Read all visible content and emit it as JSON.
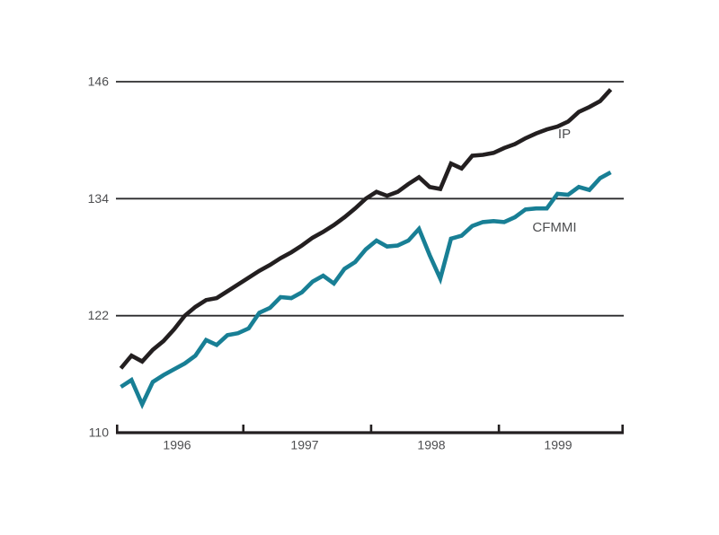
{
  "chart": {
    "style": {
      "background": "#ffffff",
      "axis_color": "#231f20",
      "grid_color": "#2b2b2d",
      "text_color": "#4d4e50",
      "ip_line_color": "#231f20",
      "cfmmi_line_color": "#187f95"
    }
  },
  "chart_data": {
    "type": "line",
    "title": "",
    "xlabel": "",
    "ylabel": "",
    "x_axis": {
      "unit": "month",
      "start": "1996-01",
      "end": "1999-11",
      "tick_labels": [
        "1996",
        "1997",
        "1998",
        "1999"
      ],
      "year_dividers": true
    },
    "y_axis": {
      "range": [
        110,
        146
      ],
      "tick_values": [
        146,
        134,
        122,
        110
      ],
      "tick_labels_top_to_bottom": [
        "146",
        "134",
        "122",
        "110"
      ],
      "gridline_values": [
        146,
        134,
        122
      ]
    },
    "legend": "inline-labels",
    "series": [
      {
        "name": "IP",
        "color": "#231f20",
        "label_position": "below-right-of-line",
        "values": [
          116.6,
          117.9,
          117.3,
          118.5,
          119.4,
          120.6,
          122.0,
          122.9,
          123.6,
          123.8,
          124.5,
          125.2,
          125.9,
          126.6,
          127.2,
          127.9,
          128.5,
          129.2,
          130.0,
          130.6,
          131.3,
          132.1,
          133.0,
          134.0,
          134.7,
          134.3,
          134.7,
          135.5,
          136.2,
          135.2,
          135.0,
          137.6,
          137.1,
          138.4,
          138.5,
          138.7,
          139.2,
          139.6,
          140.2,
          140.7,
          141.1,
          141.4,
          141.9,
          142.9,
          143.4,
          144.0,
          145.2
        ]
      },
      {
        "name": "CFMMI",
        "color": "#187f95",
        "label_position": "below-line",
        "values": [
          114.7,
          115.4,
          112.9,
          115.2,
          115.9,
          116.5,
          117.1,
          117.9,
          119.5,
          119.0,
          120.0,
          120.2,
          120.7,
          122.3,
          122.8,
          123.9,
          123.8,
          124.4,
          125.5,
          126.1,
          125.3,
          126.8,
          127.5,
          128.8,
          129.7,
          129.1,
          129.2,
          129.7,
          130.9,
          128.2,
          125.8,
          129.9,
          130.2,
          131.2,
          131.6,
          131.7,
          131.6,
          132.1,
          132.9,
          133.0,
          133.0,
          134.5,
          134.4,
          135.2,
          134.9,
          136.1,
          136.7
        ]
      }
    ]
  }
}
